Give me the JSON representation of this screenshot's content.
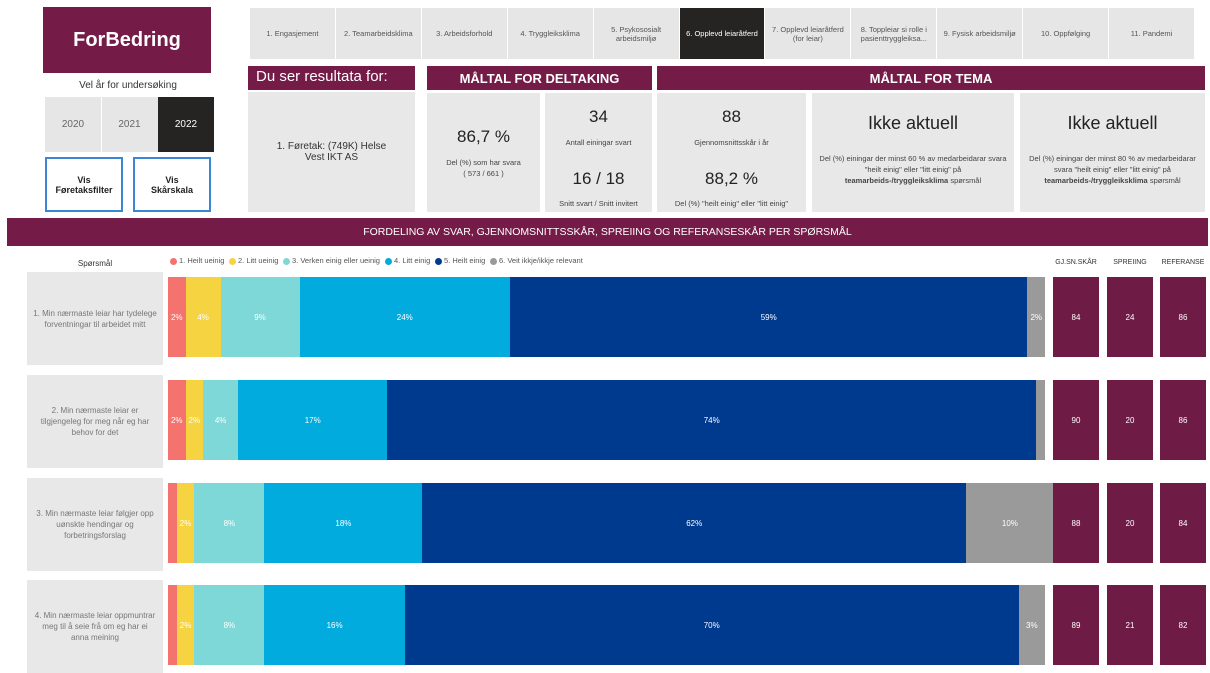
{
  "logo": "ForBedring",
  "year_label": "Vel år for undersøking",
  "years": [
    {
      "label": "2020"
    },
    {
      "label": "2021"
    },
    {
      "label": "2022",
      "active": true
    }
  ],
  "buttons": [
    "Vis Føretaksfilter",
    "Vis Skårskala"
  ],
  "tabs": [
    {
      "label": "1. Engasjement"
    },
    {
      "label": "2. Teamarbeidsklima"
    },
    {
      "label": "3. Arbeidsforhold"
    },
    {
      "label": "4. Tryggleiksklima"
    },
    {
      "label": "5. Psykososialt arbeidsmiljø"
    },
    {
      "label": "6. Opplevd leiaråtferd",
      "active": true
    },
    {
      "label": "7. Opplevd leiaråtferd (for leiar)"
    },
    {
      "label": "8. Toppleiar si rolle i pasienttryggleiksa..."
    },
    {
      "label": "9. Fysisk arbeidsmiljø"
    },
    {
      "label": "10. Oppfølging"
    },
    {
      "label": "11. Pandemi"
    }
  ],
  "result_for": {
    "title": "Du ser resultata for:",
    "text": "1. Føretak: (749K) Helse Vest IKT AS"
  },
  "participation": {
    "title": "MÅLTAL FOR DELTAKING",
    "cards": [
      {
        "value": "86,7 %",
        "label": "Del (%) som har svara",
        "sub": "( 573 / 661 )"
      },
      {
        "value": "34",
        "label": "Antall einingar svart",
        "value2": "16 / 18",
        "label2": "Snitt svart / Snitt invitert"
      }
    ]
  },
  "theme": {
    "title": "MÅLTAL FOR TEMA",
    "cards": [
      {
        "value": "88",
        "label": "Gjennomsnittsskår i år",
        "value2": "88,2 %",
        "label2": "Del (%) \"heilt einig\" eller \"litt einig\""
      },
      {
        "value": "Ikke aktuell",
        "text": "Del (%) einingar der minst 60 % av medarbeidarar svara \"heilt einig\" eller \"litt einig\" på",
        "bold": "teamarbeids-/tryggleiksklima",
        "tail": "spørsmål"
      },
      {
        "value": "Ikke aktuell",
        "text": "Del (%) einingar der minst 80 % av medarbeidarar svara \"heilt einig\" eller \"litt einig\" på",
        "bold": "teamarbeids-/tryggleiksklima",
        "tail": "spørsmål"
      }
    ]
  },
  "chart_data": {
    "type": "bar",
    "orientation": "horizontal",
    "stacked": true,
    "title": "FORDELING AV SVAR, GJENNOMSNITTSSKÅR, SPREIING OG REFERANSESKÅR PER SPØRSMÅL",
    "category_label": "Spørsmål",
    "categories": [
      "1. Min nærmaste leiar har tydelege forventningar til arbeidet mitt",
      "2. Min nærmaste leiar er tilgjengeleg for meg når eg har behov for det",
      "3. Min nærmaste leiar følgjer opp uønskte hendingar og forbetringsforslag",
      "4. Min nærmaste leiar oppmuntrar meg til å seie frå om eg har ei anna meining"
    ],
    "xlim": [
      0,
      100
    ],
    "series": [
      {
        "name": "1. Heilt ueinig",
        "color": "#f4736f",
        "values": [
          2,
          2,
          1,
          1
        ],
        "value_labels": [
          "2%",
          "2%",
          null,
          null
        ]
      },
      {
        "name": "2. Litt ueinig",
        "color": "#f6d341",
        "values": [
          4,
          2,
          2,
          2
        ],
        "value_labels": [
          "4%",
          "2%",
          "2%",
          "2%"
        ]
      },
      {
        "name": "3. Verken einig eller ueinig",
        "color": "#7ed8d8",
        "values": [
          9,
          4,
          8,
          8
        ],
        "value_labels": [
          "9%",
          "4%",
          "8%",
          "8%"
        ]
      },
      {
        "name": "4. Litt einig",
        "color": "#01abdd",
        "values": [
          24,
          17,
          18,
          16
        ],
        "value_labels": [
          "24%",
          "17%",
          "18%",
          "16%"
        ]
      },
      {
        "name": "5. Heilt einig",
        "color": "#003a8f",
        "values": [
          59,
          74,
          62,
          70
        ],
        "value_labels": [
          "59%",
          "74%",
          "62%",
          "70%"
        ]
      },
      {
        "name": "6. Veit ikkje/ikkje relevant",
        "color": "#9a9a9a",
        "values": [
          2,
          1,
          10,
          3
        ],
        "value_labels": [
          "2%",
          null,
          "10%",
          "3%"
        ]
      }
    ],
    "score_columns": [
      {
        "name": "GJ.SN.SKÅR",
        "values": [
          84,
          90,
          88,
          89
        ]
      },
      {
        "name": "SPREIING",
        "values": [
          24,
          20,
          20,
          21
        ]
      },
      {
        "name": "REFERANSE",
        "values": [
          86,
          86,
          84,
          82
        ]
      }
    ],
    "score_color": "#6e1c45"
  }
}
